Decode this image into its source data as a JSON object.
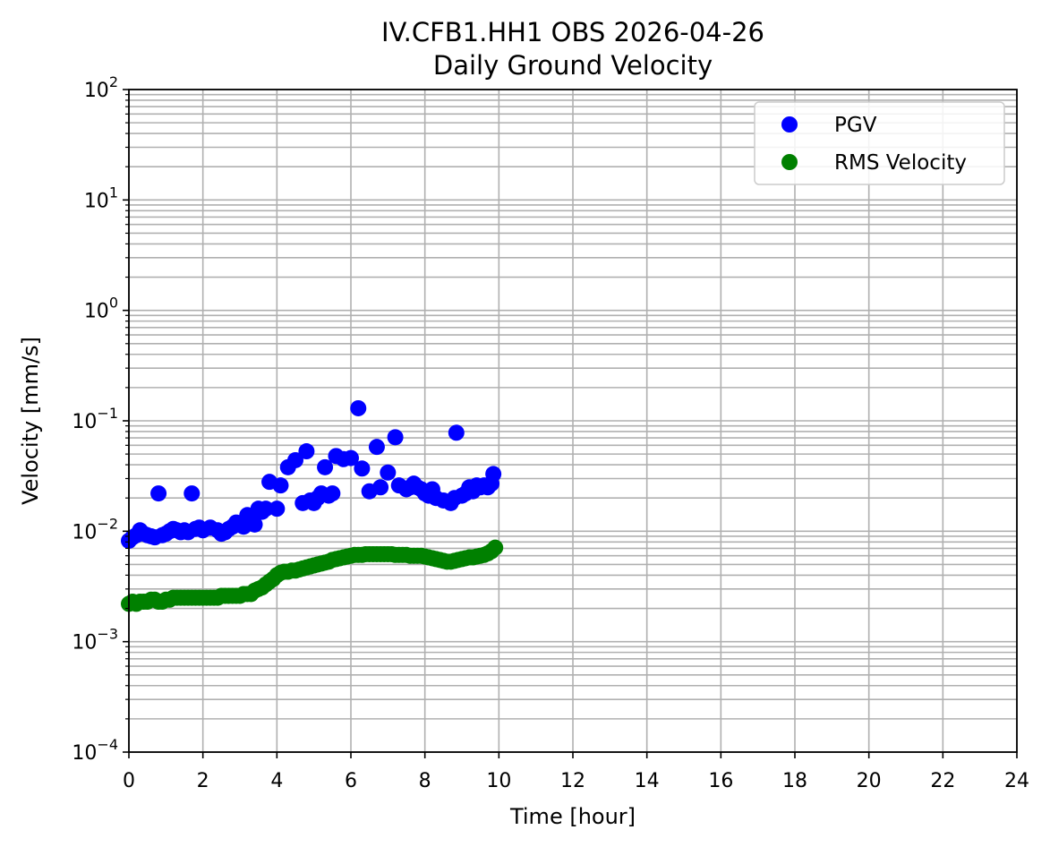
{
  "chart_data": {
    "type": "scatter",
    "title": "IV.CFB1.HH1 OBS 2026-04-26",
    "subtitle": "Daily Ground Velocity",
    "xlabel": "Time [hour]",
    "ylabel": "Velocity [mm/s]",
    "xlim": [
      0,
      24
    ],
    "ylim": [
      0.0001,
      100
    ],
    "yscale": "log",
    "grid": "major and minor",
    "legend_position": "top-right",
    "x_ticks": [
      "0",
      "2",
      "4",
      "6",
      "8",
      "10",
      "12",
      "14",
      "16",
      "18",
      "20",
      "22",
      "24"
    ],
    "y_ticks": [
      {
        "base": "10",
        "exp": "−4",
        "value": 0.0001
      },
      {
        "base": "10",
        "exp": "−3",
        "value": 0.001
      },
      {
        "base": "10",
        "exp": "−2",
        "value": 0.01
      },
      {
        "base": "10",
        "exp": "−1",
        "value": 0.1
      },
      {
        "base": "10",
        "exp": "0",
        "value": 1
      },
      {
        "base": "10",
        "exp": "1",
        "value": 10
      },
      {
        "base": "10",
        "exp": "2",
        "value": 100
      }
    ],
    "series": [
      {
        "name": "PGV",
        "color": "#0000ff",
        "points": [
          [
            0.0,
            0.0082
          ],
          [
            0.1,
            0.0088
          ],
          [
            0.2,
            0.0092
          ],
          [
            0.3,
            0.0102
          ],
          [
            0.4,
            0.0095
          ],
          [
            0.5,
            0.0092
          ],
          [
            0.6,
            0.009
          ],
          [
            0.7,
            0.0088
          ],
          [
            0.8,
            0.022
          ],
          [
            0.9,
            0.0092
          ],
          [
            1.0,
            0.0095
          ],
          [
            1.1,
            0.01
          ],
          [
            1.2,
            0.0105
          ],
          [
            1.3,
            0.0102
          ],
          [
            1.4,
            0.0098
          ],
          [
            1.5,
            0.0102
          ],
          [
            1.6,
            0.0098
          ],
          [
            1.7,
            0.022
          ],
          [
            1.8,
            0.0105
          ],
          [
            1.9,
            0.0108
          ],
          [
            2.0,
            0.0102
          ],
          [
            2.2,
            0.0108
          ],
          [
            2.4,
            0.0102
          ],
          [
            2.5,
            0.0095
          ],
          [
            2.6,
            0.0098
          ],
          [
            2.7,
            0.0105
          ],
          [
            2.8,
            0.011
          ],
          [
            2.9,
            0.012
          ],
          [
            3.0,
            0.0115
          ],
          [
            3.1,
            0.011
          ],
          [
            3.2,
            0.014
          ],
          [
            3.3,
            0.012
          ],
          [
            3.4,
            0.0115
          ],
          [
            3.5,
            0.016
          ],
          [
            3.6,
            0.015
          ],
          [
            3.7,
            0.016
          ],
          [
            3.8,
            0.028
          ],
          [
            4.0,
            0.016
          ],
          [
            4.1,
            0.026
          ],
          [
            4.3,
            0.038
          ],
          [
            4.5,
            0.044
          ],
          [
            4.7,
            0.018
          ],
          [
            4.8,
            0.053
          ],
          [
            4.9,
            0.019
          ],
          [
            5.0,
            0.018
          ],
          [
            5.1,
            0.02
          ],
          [
            5.2,
            0.022
          ],
          [
            5.3,
            0.038
          ],
          [
            5.4,
            0.021
          ],
          [
            5.5,
            0.022
          ],
          [
            5.6,
            0.048
          ],
          [
            5.8,
            0.045
          ],
          [
            6.0,
            0.046
          ],
          [
            6.2,
            0.13
          ],
          [
            6.3,
            0.037
          ],
          [
            6.5,
            0.023
          ],
          [
            6.7,
            0.058
          ],
          [
            6.8,
            0.025
          ],
          [
            7.0,
            0.034
          ],
          [
            7.2,
            0.071
          ],
          [
            7.3,
            0.026
          ],
          [
            7.5,
            0.024
          ],
          [
            7.6,
            0.025
          ],
          [
            7.7,
            0.027
          ],
          [
            7.8,
            0.025
          ],
          [
            7.9,
            0.024
          ],
          [
            8.0,
            0.022
          ],
          [
            8.1,
            0.021
          ],
          [
            8.2,
            0.024
          ],
          [
            8.3,
            0.02
          ],
          [
            8.5,
            0.019
          ],
          [
            8.7,
            0.018
          ],
          [
            8.8,
            0.02
          ],
          [
            8.85,
            0.078
          ],
          [
            9.0,
            0.021
          ],
          [
            9.1,
            0.022
          ],
          [
            9.2,
            0.025
          ],
          [
            9.3,
            0.023
          ],
          [
            9.4,
            0.026
          ],
          [
            9.5,
            0.025
          ],
          [
            9.6,
            0.026
          ],
          [
            9.7,
            0.025
          ],
          [
            9.8,
            0.027
          ],
          [
            9.85,
            0.033
          ]
        ]
      },
      {
        "name": "RMS Velocity",
        "color": "#008000",
        "points": [
          [
            0.0,
            0.0022
          ],
          [
            0.1,
            0.0023
          ],
          [
            0.2,
            0.0022
          ],
          [
            0.3,
            0.0023
          ],
          [
            0.4,
            0.0023
          ],
          [
            0.5,
            0.0023
          ],
          [
            0.6,
            0.0024
          ],
          [
            0.7,
            0.0024
          ],
          [
            0.8,
            0.0023
          ],
          [
            0.9,
            0.0023
          ],
          [
            1.0,
            0.0024
          ],
          [
            1.1,
            0.0024
          ],
          [
            1.2,
            0.0025
          ],
          [
            1.3,
            0.0025
          ],
          [
            1.4,
            0.0025
          ],
          [
            1.5,
            0.0025
          ],
          [
            1.6,
            0.0025
          ],
          [
            1.7,
            0.0025
          ],
          [
            1.8,
            0.0025
          ],
          [
            1.9,
            0.0025
          ],
          [
            2.0,
            0.0025
          ],
          [
            2.1,
            0.0025
          ],
          [
            2.2,
            0.0025
          ],
          [
            2.3,
            0.0025
          ],
          [
            2.4,
            0.0025
          ],
          [
            2.5,
            0.0026
          ],
          [
            2.6,
            0.0026
          ],
          [
            2.7,
            0.0026
          ],
          [
            2.8,
            0.0026
          ],
          [
            2.9,
            0.0026
          ],
          [
            3.0,
            0.0026
          ],
          [
            3.1,
            0.0027
          ],
          [
            3.2,
            0.0027
          ],
          [
            3.3,
            0.0027
          ],
          [
            3.4,
            0.0029
          ],
          [
            3.5,
            0.003
          ],
          [
            3.6,
            0.0031
          ],
          [
            3.7,
            0.0033
          ],
          [
            3.8,
            0.0035
          ],
          [
            3.9,
            0.0037
          ],
          [
            4.0,
            0.004
          ],
          [
            4.1,
            0.0042
          ],
          [
            4.2,
            0.0043
          ],
          [
            4.3,
            0.0043
          ],
          [
            4.4,
            0.0044
          ],
          [
            4.5,
            0.0044
          ],
          [
            4.6,
            0.0045
          ],
          [
            4.7,
            0.0046
          ],
          [
            4.8,
            0.0047
          ],
          [
            4.9,
            0.0048
          ],
          [
            5.0,
            0.0049
          ],
          [
            5.1,
            0.005
          ],
          [
            5.2,
            0.0051
          ],
          [
            5.3,
            0.0052
          ],
          [
            5.4,
            0.0053
          ],
          [
            5.5,
            0.0055
          ],
          [
            5.6,
            0.0056
          ],
          [
            5.7,
            0.0057
          ],
          [
            5.8,
            0.0058
          ],
          [
            5.9,
            0.0059
          ],
          [
            6.0,
            0.006
          ],
          [
            6.1,
            0.0061
          ],
          [
            6.2,
            0.0061
          ],
          [
            6.3,
            0.0061
          ],
          [
            6.4,
            0.0062
          ],
          [
            6.5,
            0.0062
          ],
          [
            6.6,
            0.0062
          ],
          [
            6.7,
            0.0062
          ],
          [
            6.8,
            0.0062
          ],
          [
            6.9,
            0.0062
          ],
          [
            7.0,
            0.0062
          ],
          [
            7.1,
            0.0062
          ],
          [
            7.2,
            0.0061
          ],
          [
            7.3,
            0.0061
          ],
          [
            7.4,
            0.0061
          ],
          [
            7.5,
            0.0061
          ],
          [
            7.6,
            0.006
          ],
          [
            7.7,
            0.006
          ],
          [
            7.8,
            0.006
          ],
          [
            7.9,
            0.006
          ],
          [
            8.0,
            0.0059
          ],
          [
            8.1,
            0.0058
          ],
          [
            8.2,
            0.0057
          ],
          [
            8.3,
            0.0056
          ],
          [
            8.4,
            0.0055
          ],
          [
            8.5,
            0.0054
          ],
          [
            8.6,
            0.0053
          ],
          [
            8.7,
            0.0053
          ],
          [
            8.8,
            0.0054
          ],
          [
            8.9,
            0.0055
          ],
          [
            9.0,
            0.0056
          ],
          [
            9.1,
            0.0057
          ],
          [
            9.2,
            0.0058
          ],
          [
            9.3,
            0.0058
          ],
          [
            9.4,
            0.0059
          ],
          [
            9.5,
            0.006
          ],
          [
            9.6,
            0.0061
          ],
          [
            9.7,
            0.0063
          ],
          [
            9.8,
            0.0066
          ],
          [
            9.9,
            0.0071
          ]
        ]
      }
    ]
  }
}
